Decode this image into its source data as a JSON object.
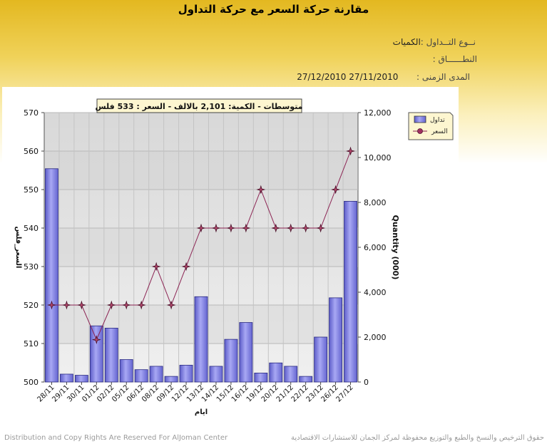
{
  "page": {
    "title": "مقارنة حركة السعر مع حركة التداول",
    "trade_type_label": "نــوع التــداول :",
    "trade_type_value": "الكميات",
    "range_label": "النطــــــاق :",
    "period_label": "المدى الزمنى :",
    "period_from": "27/11/2010",
    "period_to": "27/12/2010",
    "footer_left": "Distribution and Copy Rights Are Reserved For AlJoman Center",
    "footer_right": "حقوق الترخيص والنسخ والطبع والتوزيع محفوظة لمركز الجمان للاستشارات الاقتصادية"
  },
  "chart_data": {
    "type": "bar+line",
    "banner": "متوسطات - الكمية: 2,101 بالالف  - السعر : 533 فلس",
    "xlabel": "ايام",
    "ylabel_left": "السعر_فلس",
    "ylabel_right": "Quantity (000)",
    "ylim_left": [
      500,
      570
    ],
    "ylim_right": [
      0,
      12000
    ],
    "left_ticks": [
      500,
      510,
      520,
      530,
      540,
      550,
      560,
      570
    ],
    "right_ticks": [
      "0",
      "2,000",
      "4,000",
      "6,000",
      "8,000",
      "10,000",
      "12,000"
    ],
    "categories": [
      "28/11",
      "29/11",
      "30/11",
      "01/12",
      "02/12",
      "05/12",
      "06/12",
      "08/12",
      "09/12",
      "12/12",
      "13/12",
      "14/12",
      "15/12",
      "16/12",
      "19/12",
      "20/12",
      "21/12",
      "22/12",
      "23/12",
      "26/12",
      "27/12"
    ],
    "legend_position": "top-right",
    "series": [
      {
        "name": "تداول",
        "kind": "bar",
        "axis": "right",
        "color": "#8080e8",
        "values": [
          9500,
          350,
          300,
          2500,
          2400,
          1000,
          550,
          700,
          250,
          750,
          3800,
          700,
          1900,
          2650,
          400,
          850,
          700,
          250,
          2000,
          3750,
          8050
        ]
      },
      {
        "name": "السعر",
        "kind": "line",
        "axis": "left",
        "color": "#8b2252",
        "values": [
          520,
          520,
          520,
          511,
          520,
          520,
          520,
          530,
          520,
          530,
          540,
          540,
          540,
          540,
          550,
          540,
          540,
          540,
          540,
          550,
          560
        ]
      }
    ],
    "grid": true
  }
}
